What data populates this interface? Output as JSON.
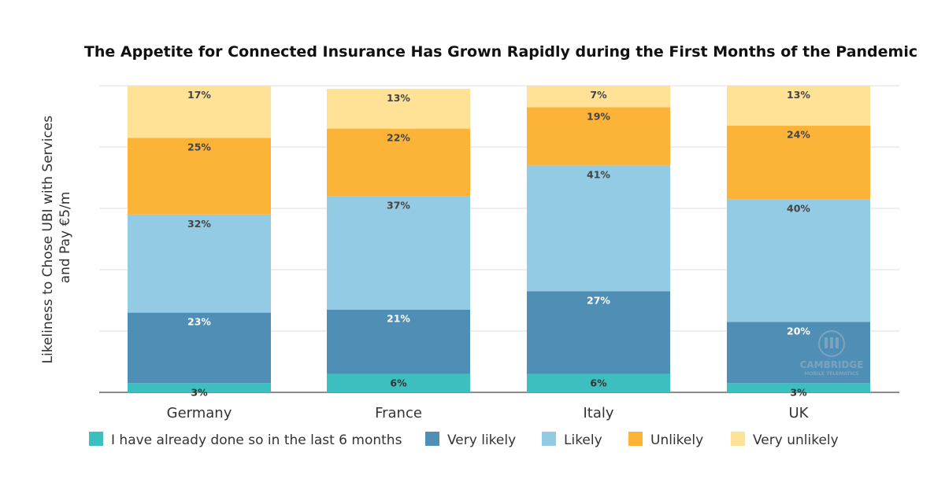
{
  "chart_data": {
    "type": "bar",
    "stacked": true,
    "title": "The Appetite for Connected Insurance Has Grown Rapidly during the First Months of the Pandemic",
    "xlabel": "",
    "ylabel_lines": [
      "Likeliness to Chose UBI with Services",
      "and Pay €5/m"
    ],
    "ylim": [
      0,
      100
    ],
    "grid": true,
    "legend_position": "bottom",
    "categories": [
      "Germany",
      "France",
      "Italy",
      "UK"
    ],
    "series": [
      {
        "name": "I have already done so in the last 6 months",
        "color": "#3dbfbf",
        "label_color": "#333333",
        "values": [
          3,
          6,
          6,
          3
        ]
      },
      {
        "name": "Very likely",
        "color": "#4f8fb6",
        "label_color": "#ffffff",
        "values": [
          23,
          21,
          27,
          20
        ]
      },
      {
        "name": "Likely",
        "color": "#93cae4",
        "label_color": "#444444",
        "values": [
          32,
          37,
          41,
          40
        ]
      },
      {
        "name": "Unlikely",
        "color": "#fbb338",
        "label_color": "#444444",
        "values": [
          25,
          22,
          19,
          24
        ]
      },
      {
        "name": "Very unlikely",
        "color": "#ffe296",
        "label_color": "#444444",
        "values": [
          17,
          13,
          7,
          13
        ]
      }
    ]
  },
  "watermark": {
    "line1": "CAMBRIDGE",
    "line2": "MOBILE TELEMATICS"
  }
}
